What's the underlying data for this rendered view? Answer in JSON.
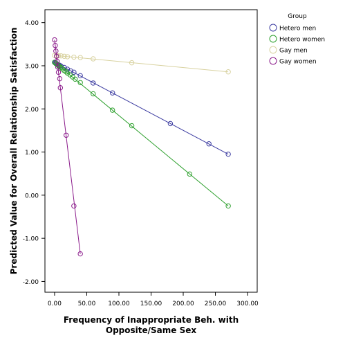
{
  "chart_data": {
    "type": "scatter",
    "title": "",
    "xlabel_lines": [
      "Frequency of Inappropriate Beh. with",
      "Opposite/Same Sex"
    ],
    "ylabel": "Predicted Value for Overall Relationship Satisfaction",
    "xlim": [
      -15,
      315
    ],
    "ylim": [
      -2.25,
      4.3
    ],
    "x_ticks": [
      0,
      50,
      100,
      150,
      200,
      250,
      300
    ],
    "x_tick_labels": [
      "0.00",
      "50.00",
      "100.00",
      "150.00",
      "200.00",
      "250.00",
      "300.00"
    ],
    "y_ticks": [
      -2,
      -1,
      0,
      1,
      2,
      3,
      4
    ],
    "y_tick_labels": [
      "-2.00",
      "-1.00",
      "0.00",
      "1.00",
      "2.00",
      "3.00",
      "4.00"
    ],
    "grid": false,
    "legend": {
      "title": "Group",
      "position": "right",
      "entries": [
        {
          "name": "Hetero men",
          "color": "#3b3ba0"
        },
        {
          "name": "Hetero women",
          "color": "#2ea02e"
        },
        {
          "name": "Gay men",
          "color": "#d8d2a0"
        },
        {
          "name": "Gay women",
          "color": "#8a1a8a"
        }
      ]
    },
    "series": [
      {
        "name": "Hetero men",
        "color": "#3b3ba0",
        "points": [
          [
            0,
            3.08
          ],
          [
            1,
            3.07
          ],
          [
            2,
            3.06
          ],
          [
            3,
            3.05
          ],
          [
            5,
            3.03
          ],
          [
            8,
            3.01
          ],
          [
            10,
            2.99
          ],
          [
            15,
            2.96
          ],
          [
            20,
            2.92
          ],
          [
            25,
            2.88
          ],
          [
            30,
            2.85
          ],
          [
            40,
            2.77
          ],
          [
            60,
            2.6
          ],
          [
            90,
            2.37
          ],
          [
            180,
            1.66
          ],
          [
            240,
            1.19
          ],
          [
            270,
            0.95
          ]
        ]
      },
      {
        "name": "Hetero women",
        "color": "#2ea02e",
        "points": [
          [
            0,
            3.08
          ],
          [
            2,
            3.05
          ],
          [
            4,
            3.03
          ],
          [
            6,
            3.0
          ],
          [
            8,
            2.98
          ],
          [
            10,
            2.96
          ],
          [
            12,
            2.93
          ],
          [
            15,
            2.89
          ],
          [
            18,
            2.86
          ],
          [
            20,
            2.83
          ],
          [
            24,
            2.79
          ],
          [
            28,
            2.74
          ],
          [
            32,
            2.69
          ],
          [
            40,
            2.61
          ],
          [
            60,
            2.35
          ],
          [
            90,
            1.97
          ],
          [
            120,
            1.61
          ],
          [
            210,
            0.49
          ],
          [
            270,
            -0.25
          ]
        ]
      },
      {
        "name": "Gay men",
        "color": "#d8d2a0",
        "points": [
          [
            0,
            3.24
          ],
          [
            3,
            3.24
          ],
          [
            6,
            3.23
          ],
          [
            10,
            3.23
          ],
          [
            15,
            3.22
          ],
          [
            20,
            3.21
          ],
          [
            30,
            3.2
          ],
          [
            40,
            3.19
          ],
          [
            60,
            3.16
          ],
          [
            120,
            3.07
          ],
          [
            270,
            2.86
          ]
        ]
      },
      {
        "name": "Gay women",
        "color": "#8a1a8a",
        "points": [
          [
            0,
            3.6
          ],
          [
            1,
            3.47
          ],
          [
            2,
            3.34
          ],
          [
            3,
            3.22
          ],
          [
            4,
            3.1
          ],
          [
            5,
            2.97
          ],
          [
            6,
            2.85
          ],
          [
            8,
            2.7
          ],
          [
            9,
            2.49
          ],
          [
            18,
            1.39
          ],
          [
            30,
            -0.25
          ],
          [
            40,
            -1.36
          ]
        ]
      }
    ]
  }
}
